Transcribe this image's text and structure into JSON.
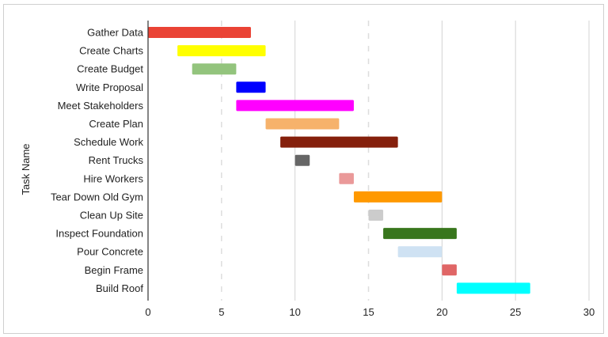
{
  "chart_data": {
    "type": "bar",
    "subtype": "gantt",
    "ylabel": "Task Name",
    "xlabel": "",
    "xlim": [
      0,
      30
    ],
    "xticks": [
      0,
      5,
      10,
      15,
      20,
      25,
      30
    ],
    "grid": true,
    "series": [
      {
        "task": "Gather Data",
        "start": 0,
        "end": 7,
        "color": "#ea4335"
      },
      {
        "task": "Create Charts",
        "start": 2,
        "end": 8,
        "color": "#ffff00"
      },
      {
        "task": "Create Budget",
        "start": 3,
        "end": 6,
        "color": "#93c47d"
      },
      {
        "task": "Write Proposal",
        "start": 6,
        "end": 8,
        "color": "#0000ff"
      },
      {
        "task": "Meet Stakeholders",
        "start": 6,
        "end": 14,
        "color": "#ff00ff"
      },
      {
        "task": "Create Plan",
        "start": 8,
        "end": 13,
        "color": "#f6b26b"
      },
      {
        "task": "Schedule Work",
        "start": 9,
        "end": 17,
        "color": "#85200c"
      },
      {
        "task": "Rent Trucks",
        "start": 10,
        "end": 11,
        "color": "#666666"
      },
      {
        "task": "Hire Workers",
        "start": 13,
        "end": 14,
        "color": "#ea9999"
      },
      {
        "task": "Tear Down Old Gym",
        "start": 14,
        "end": 20,
        "color": "#ff9900"
      },
      {
        "task": "Clean Up Site",
        "start": 15,
        "end": 16,
        "color": "#cccccc"
      },
      {
        "task": "Inspect Foundation",
        "start": 16,
        "end": 21,
        "color": "#38761d"
      },
      {
        "task": "Pour Concrete",
        "start": 17,
        "end": 20,
        "color": "#cfe2f3"
      },
      {
        "task": "Begin Frame",
        "start": 20,
        "end": 21,
        "color": "#e06666"
      },
      {
        "task": "Build Roof",
        "start": 21,
        "end": 26,
        "color": "#00ffff"
      }
    ]
  }
}
